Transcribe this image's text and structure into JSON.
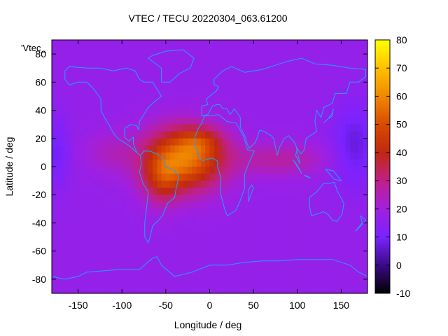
{
  "chart_data": {
    "type": "heatmap",
    "title": "VTEC / TECU 20220304_063.61200",
    "xlabel": "Longitude / deg",
    "ylabel": "Latitude / deg",
    "key_label": "'Vtec_",
    "xlim": [
      -180,
      180
    ],
    "ylim": [
      -90,
      90
    ],
    "xticks": [
      -150,
      -100,
      -50,
      0,
      50,
      100,
      150
    ],
    "yticks": [
      -80,
      -60,
      -40,
      -20,
      0,
      20,
      40,
      60,
      80
    ],
    "colorbar": {
      "range": [
        -10,
        80
      ],
      "ticks": [
        -10,
        0,
        10,
        20,
        30,
        40,
        50,
        60,
        70,
        80
      ]
    },
    "palette": [
      "#000000",
      "#3a0a85",
      "#7a22ff",
      "#a020e0",
      "#c0208a",
      "#c02810",
      "#d84a00",
      "#f08800",
      "#ffc000",
      "#ffff00"
    ],
    "coast_color": "#1ea0ff",
    "field": {
      "description_units": "TECU",
      "background": 17,
      "blobs": [
        {
          "lon": -30,
          "lat": 5,
          "amp": 40,
          "sx": 45,
          "sy": 22
        },
        {
          "lon": -10,
          "lat": 18,
          "amp": 12,
          "sx": 25,
          "sy": 10
        },
        {
          "lon": -55,
          "lat": -10,
          "amp": 14,
          "sx": 20,
          "sy": 18
        },
        {
          "lon": 80,
          "lat": 5,
          "amp": 10,
          "sx": 55,
          "sy": 12
        },
        {
          "lon": -115,
          "lat": 10,
          "amp": 6,
          "sx": 30,
          "sy": 15
        },
        {
          "lon": 165,
          "lat": 15,
          "amp": -10,
          "sx": 25,
          "sy": 30
        },
        {
          "lon": -175,
          "lat": 10,
          "amp": -8,
          "sx": 15,
          "sy": 25
        }
      ]
    }
  }
}
